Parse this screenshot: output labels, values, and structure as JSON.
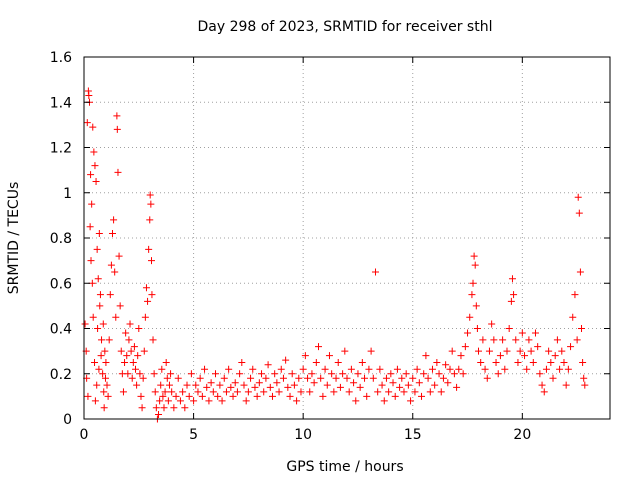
{
  "chart_data": {
    "type": "scatter",
    "title": "Day 298 of 2023, SRMTID for receiver sthl",
    "xlabel": "GPS time / hours",
    "ylabel": "SRMTID / TECUs",
    "xlim": [
      0,
      24
    ],
    "ylim": [
      0,
      1.6
    ],
    "grid": true,
    "marker": "plus",
    "color": "#ff0000",
    "x_ticks": [
      {
        "value": 0,
        "label": "0"
      },
      {
        "value": 5,
        "label": "5"
      },
      {
        "value": 10,
        "label": "10"
      },
      {
        "value": 15,
        "label": "15"
      },
      {
        "value": 20,
        "label": "20"
      }
    ],
    "y_ticks": [
      {
        "value": 0,
        "label": "0"
      },
      {
        "value": 0.2,
        "label": "0.2"
      },
      {
        "value": 0.4,
        "label": "0.4"
      },
      {
        "value": 0.6,
        "label": "0.6"
      },
      {
        "value": 0.8,
        "label": "0.8"
      },
      {
        "value": 1.0,
        "label": "1"
      },
      {
        "value": 1.2,
        "label": "1.2"
      },
      {
        "value": 1.4,
        "label": "1.4"
      },
      {
        "value": 1.6,
        "label": "1.6"
      }
    ],
    "series": [
      {
        "name": "SRMTID",
        "points": [
          [
            0.05,
            0.42
          ],
          [
            0.1,
            0.3
          ],
          [
            0.15,
            1.31
          ],
          [
            0.2,
            1.45
          ],
          [
            0.22,
            1.43
          ],
          [
            0.25,
            1.4
          ],
          [
            0.3,
            1.08
          ],
          [
            0.35,
            0.95
          ],
          [
            0.4,
            1.29
          ],
          [
            0.45,
            1.18
          ],
          [
            0.5,
            1.12
          ],
          [
            0.55,
            1.05
          ],
          [
            0.6,
            0.75
          ],
          [
            0.65,
            0.62
          ],
          [
            0.7,
            0.82
          ],
          [
            0.75,
            0.55
          ],
          [
            0.8,
            0.35
          ],
          [
            0.85,
            0.2
          ],
          [
            0.9,
            0.12
          ],
          [
            0.95,
            0.3
          ],
          [
            0.12,
            0.18
          ],
          [
            0.18,
            0.1
          ],
          [
            0.28,
            0.85
          ],
          [
            0.32,
            0.7
          ],
          [
            0.38,
            0.6
          ],
          [
            0.42,
            0.45
          ],
          [
            0.48,
            0.25
          ],
          [
            0.52,
            0.08
          ],
          [
            0.58,
            0.15
          ],
          [
            0.62,
            0.4
          ],
          [
            0.68,
            0.22
          ],
          [
            0.72,
            0.5
          ],
          [
            0.78,
            0.28
          ],
          [
            0.88,
            0.42
          ],
          [
            0.92,
            0.05
          ],
          [
            0.98,
            0.18
          ],
          [
            1.0,
            0.25
          ],
          [
            1.05,
            0.15
          ],
          [
            1.1,
            0.1
          ],
          [
            1.15,
            0.35
          ],
          [
            1.2,
            0.55
          ],
          [
            1.25,
            0.68
          ],
          [
            1.3,
            0.82
          ],
          [
            1.35,
            0.88
          ],
          [
            1.4,
            0.65
          ],
          [
            1.45,
            0.45
          ],
          [
            1.5,
            1.34
          ],
          [
            1.52,
            1.28
          ],
          [
            1.55,
            1.09
          ],
          [
            1.6,
            0.72
          ],
          [
            1.65,
            0.5
          ],
          [
            1.7,
            0.3
          ],
          [
            1.75,
            0.2
          ],
          [
            1.8,
            0.12
          ],
          [
            1.85,
            0.25
          ],
          [
            1.9,
            0.38
          ],
          [
            1.95,
            0.28
          ],
          [
            2.0,
            0.2
          ],
          [
            2.05,
            0.35
          ],
          [
            2.1,
            0.42
          ],
          [
            2.15,
            0.3
          ],
          [
            2.2,
            0.18
          ],
          [
            2.25,
            0.25
          ],
          [
            2.3,
            0.32
          ],
          [
            2.35,
            0.22
          ],
          [
            2.4,
            0.15
          ],
          [
            2.45,
            0.28
          ],
          [
            2.5,
            0.4
          ],
          [
            2.55,
            0.2
          ],
          [
            2.6,
            0.1
          ],
          [
            2.65,
            0.05
          ],
          [
            2.7,
            0.18
          ],
          [
            2.75,
            0.3
          ],
          [
            2.8,
            0.45
          ],
          [
            2.85,
            0.58
          ],
          [
            2.9,
            0.52
          ],
          [
            2.95,
            0.75
          ],
          [
            3.0,
            0.88
          ],
          [
            3.02,
            0.99
          ],
          [
            3.05,
            0.95
          ],
          [
            3.08,
            0.7
          ],
          [
            3.1,
            0.55
          ],
          [
            3.15,
            0.35
          ],
          [
            3.2,
            0.2
          ],
          [
            3.25,
            0.12
          ],
          [
            3.3,
            0.05
          ],
          [
            3.35,
            0.0
          ],
          [
            3.4,
            0.02
          ],
          [
            3.45,
            0.08
          ],
          [
            3.5,
            0.15
          ],
          [
            3.55,
            0.22
          ],
          [
            3.6,
            0.1
          ],
          [
            3.65,
            0.05
          ],
          [
            3.7,
            0.12
          ],
          [
            3.75,
            0.25
          ],
          [
            3.8,
            0.18
          ],
          [
            3.85,
            0.08
          ],
          [
            3.9,
            0.15
          ],
          [
            3.95,
            0.2
          ],
          [
            4.0,
            0.12
          ],
          [
            4.1,
            0.05
          ],
          [
            4.2,
            0.1
          ],
          [
            4.3,
            0.18
          ],
          [
            4.4,
            0.08
          ],
          [
            4.5,
            0.12
          ],
          [
            4.6,
            0.05
          ],
          [
            4.7,
            0.15
          ],
          [
            4.8,
            0.1
          ],
          [
            4.9,
            0.2
          ],
          [
            5.0,
            0.08
          ],
          [
            5.1,
            0.15
          ],
          [
            5.2,
            0.12
          ],
          [
            5.3,
            0.18
          ],
          [
            5.4,
            0.1
          ],
          [
            5.5,
            0.22
          ],
          [
            5.6,
            0.14
          ],
          [
            5.7,
            0.08
          ],
          [
            5.8,
            0.16
          ],
          [
            5.9,
            0.12
          ],
          [
            6.0,
            0.2
          ],
          [
            6.1,
            0.1
          ],
          [
            6.2,
            0.15
          ],
          [
            6.3,
            0.08
          ],
          [
            6.4,
            0.18
          ],
          [
            6.5,
            0.12
          ],
          [
            6.6,
            0.22
          ],
          [
            6.7,
            0.14
          ],
          [
            6.8,
            0.1
          ],
          [
            6.9,
            0.16
          ],
          [
            7.0,
            0.12
          ],
          [
            7.1,
            0.2
          ],
          [
            7.2,
            0.25
          ],
          [
            7.3,
            0.15
          ],
          [
            7.4,
            0.08
          ],
          [
            7.5,
            0.12
          ],
          [
            7.6,
            0.18
          ],
          [
            7.7,
            0.22
          ],
          [
            7.8,
            0.14
          ],
          [
            7.9,
            0.1
          ],
          [
            8.0,
            0.16
          ],
          [
            8.1,
            0.2
          ],
          [
            8.2,
            0.12
          ],
          [
            8.3,
            0.18
          ],
          [
            8.4,
            0.24
          ],
          [
            8.5,
            0.14
          ],
          [
            8.6,
            0.1
          ],
          [
            8.7,
            0.2
          ],
          [
            8.8,
            0.16
          ],
          [
            8.9,
            0.12
          ],
          [
            9.0,
            0.22
          ],
          [
            9.1,
            0.18
          ],
          [
            9.2,
            0.26
          ],
          [
            9.3,
            0.14
          ],
          [
            9.4,
            0.1
          ],
          [
            9.5,
            0.2
          ],
          [
            9.6,
            0.15
          ],
          [
            9.7,
            0.08
          ],
          [
            9.8,
            0.18
          ],
          [
            9.9,
            0.12
          ],
          [
            10.0,
            0.22
          ],
          [
            10.1,
            0.28
          ],
          [
            10.2,
            0.18
          ],
          [
            10.3,
            0.12
          ],
          [
            10.4,
            0.2
          ],
          [
            10.5,
            0.16
          ],
          [
            10.6,
            0.25
          ],
          [
            10.7,
            0.32
          ],
          [
            10.8,
            0.18
          ],
          [
            10.9,
            0.1
          ],
          [
            11.0,
            0.22
          ],
          [
            11.1,
            0.15
          ],
          [
            11.2,
            0.28
          ],
          [
            11.3,
            0.2
          ],
          [
            11.4,
            0.12
          ],
          [
            11.5,
            0.18
          ],
          [
            11.6,
            0.25
          ],
          [
            11.7,
            0.14
          ],
          [
            11.8,
            0.2
          ],
          [
            11.9,
            0.3
          ],
          [
            12.0,
            0.18
          ],
          [
            12.1,
            0.12
          ],
          [
            12.2,
            0.22
          ],
          [
            12.3,
            0.16
          ],
          [
            12.4,
            0.08
          ],
          [
            12.5,
            0.2
          ],
          [
            12.6,
            0.14
          ],
          [
            12.7,
            0.25
          ],
          [
            12.8,
            0.18
          ],
          [
            12.9,
            0.1
          ],
          [
            13.0,
            0.22
          ],
          [
            13.1,
            0.3
          ],
          [
            13.2,
            0.18
          ],
          [
            13.3,
            0.65
          ],
          [
            13.4,
            0.12
          ],
          [
            13.5,
            0.22
          ],
          [
            13.6,
            0.15
          ],
          [
            13.7,
            0.08
          ],
          [
            13.8,
            0.18
          ],
          [
            13.9,
            0.12
          ],
          [
            14.0,
            0.2
          ],
          [
            14.1,
            0.16
          ],
          [
            14.2,
            0.1
          ],
          [
            14.3,
            0.22
          ],
          [
            14.4,
            0.14
          ],
          [
            14.5,
            0.18
          ],
          [
            14.6,
            0.12
          ],
          [
            14.7,
            0.2
          ],
          [
            14.8,
            0.15
          ],
          [
            14.9,
            0.08
          ],
          [
            15.0,
            0.18
          ],
          [
            15.1,
            0.12
          ],
          [
            15.2,
            0.22
          ],
          [
            15.3,
            0.16
          ],
          [
            15.4,
            0.1
          ],
          [
            15.5,
            0.2
          ],
          [
            15.6,
            0.28
          ],
          [
            15.7,
            0.18
          ],
          [
            15.8,
            0.12
          ],
          [
            15.9,
            0.22
          ],
          [
            16.0,
            0.15
          ],
          [
            16.1,
            0.25
          ],
          [
            16.2,
            0.2
          ],
          [
            16.3,
            0.12
          ],
          [
            16.4,
            0.18
          ],
          [
            16.5,
            0.24
          ],
          [
            16.6,
            0.16
          ],
          [
            16.7,
            0.22
          ],
          [
            16.8,
            0.3
          ],
          [
            16.9,
            0.2
          ],
          [
            17.0,
            0.14
          ],
          [
            17.1,
            0.22
          ],
          [
            17.2,
            0.28
          ],
          [
            17.3,
            0.2
          ],
          [
            17.4,
            0.32
          ],
          [
            17.5,
            0.38
          ],
          [
            17.6,
            0.45
          ],
          [
            17.7,
            0.55
          ],
          [
            17.75,
            0.6
          ],
          [
            17.8,
            0.72
          ],
          [
            17.85,
            0.68
          ],
          [
            17.9,
            0.5
          ],
          [
            17.95,
            0.4
          ],
          [
            18.0,
            0.3
          ],
          [
            18.1,
            0.25
          ],
          [
            18.2,
            0.35
          ],
          [
            18.3,
            0.22
          ],
          [
            18.4,
            0.18
          ],
          [
            18.5,
            0.3
          ],
          [
            18.6,
            0.42
          ],
          [
            18.7,
            0.35
          ],
          [
            18.8,
            0.25
          ],
          [
            18.9,
            0.2
          ],
          [
            19.0,
            0.28
          ],
          [
            19.1,
            0.35
          ],
          [
            19.2,
            0.22
          ],
          [
            19.3,
            0.3
          ],
          [
            19.4,
            0.4
          ],
          [
            19.5,
            0.52
          ],
          [
            19.55,
            0.62
          ],
          [
            19.6,
            0.55
          ],
          [
            19.7,
            0.35
          ],
          [
            19.8,
            0.25
          ],
          [
            19.9,
            0.3
          ],
          [
            20.0,
            0.38
          ],
          [
            20.1,
            0.28
          ],
          [
            20.2,
            0.22
          ],
          [
            20.3,
            0.35
          ],
          [
            20.4,
            0.3
          ],
          [
            20.5,
            0.25
          ],
          [
            20.6,
            0.38
          ],
          [
            20.7,
            0.32
          ],
          [
            20.8,
            0.2
          ],
          [
            20.9,
            0.15
          ],
          [
            21.0,
            0.12
          ],
          [
            21.1,
            0.22
          ],
          [
            21.2,
            0.3
          ],
          [
            21.3,
            0.25
          ],
          [
            21.4,
            0.18
          ],
          [
            21.5,
            0.28
          ],
          [
            21.6,
            0.35
          ],
          [
            21.7,
            0.22
          ],
          [
            21.8,
            0.3
          ],
          [
            21.9,
            0.25
          ],
          [
            22.0,
            0.15
          ],
          [
            22.1,
            0.22
          ],
          [
            22.2,
            0.32
          ],
          [
            22.3,
            0.45
          ],
          [
            22.4,
            0.55
          ],
          [
            22.5,
            0.35
          ],
          [
            22.55,
            0.98
          ],
          [
            22.6,
            0.91
          ],
          [
            22.65,
            0.65
          ],
          [
            22.7,
            0.4
          ],
          [
            22.75,
            0.25
          ],
          [
            22.8,
            0.18
          ],
          [
            22.85,
            0.15
          ]
        ]
      }
    ]
  }
}
